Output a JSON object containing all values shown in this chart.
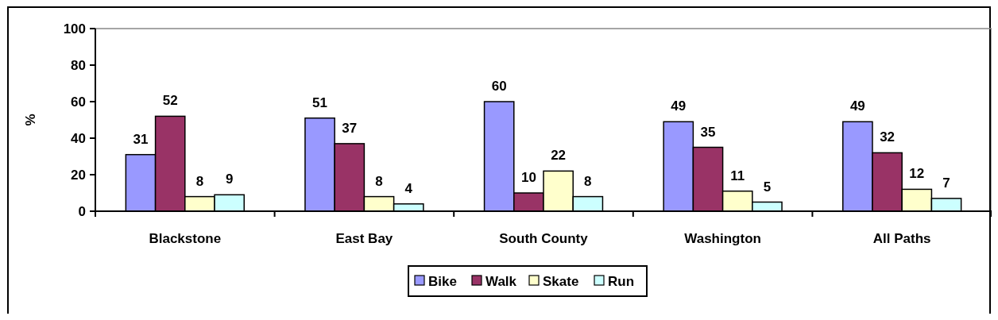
{
  "chart_data": {
    "type": "bar",
    "ylabel": "%",
    "categories": [
      "Blackstone",
      "East Bay",
      "South County",
      "Washington",
      "All Paths"
    ],
    "series": [
      {
        "name": "Bike",
        "color": "#9999ff",
        "values": [
          31,
          51,
          60,
          49,
          49
        ]
      },
      {
        "name": "Walk",
        "color": "#993366",
        "values": [
          52,
          37,
          10,
          35,
          32
        ]
      },
      {
        "name": "Skate",
        "color": "#ffffcc",
        "values": [
          8,
          8,
          22,
          11,
          12
        ]
      },
      {
        "name": "Run",
        "color": "#ccffff",
        "values": [
          9,
          4,
          8,
          5,
          7
        ]
      }
    ],
    "ylim": [
      0,
      100
    ],
    "yticks": [
      0,
      20,
      40,
      60,
      80,
      100
    ],
    "data_labels": true,
    "grid": false,
    "legend": "bottom"
  }
}
